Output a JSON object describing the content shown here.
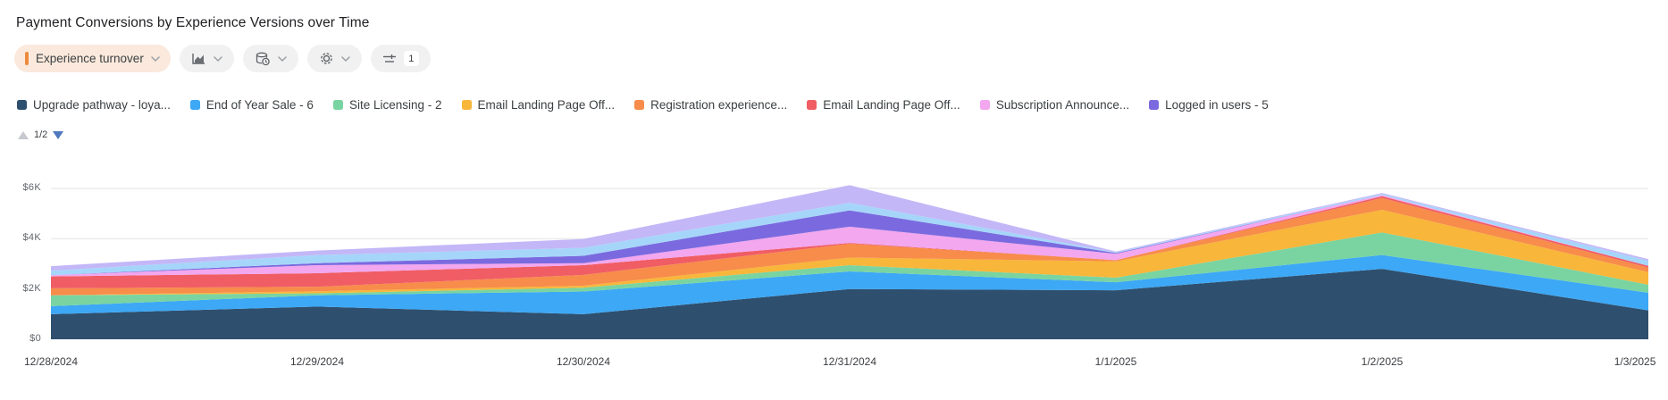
{
  "header": {
    "title": "Payment Conversions by Experience Versions over Time"
  },
  "toolbar": {
    "metric_pill": {
      "label": "Experience turnover",
      "accent_color": "#ed8a3c",
      "bg_color": "#fae9dc"
    },
    "filter_badge": "1"
  },
  "legend": {
    "page_indicator": "1/2",
    "items": [
      {
        "label": "Upgrade pathway - loya...",
        "color": "#2e4f6e"
      },
      {
        "label": "End of Year Sale - 6",
        "color": "#3da8f5"
      },
      {
        "label": "Site Licensing - 2",
        "color": "#79d4a1"
      },
      {
        "label": "Email Landing Page Off...",
        "color": "#f8b63a"
      },
      {
        "label": "Registration experience...",
        "color": "#f78c4b"
      },
      {
        "label": "Email Landing Page Off...",
        "color": "#f05d64"
      },
      {
        "label": "Subscription Announce...",
        "color": "#f2a7ee"
      },
      {
        "label": "Logged in users - 5",
        "color": "#7b6adf"
      }
    ]
  },
  "chart_data": {
    "type": "area",
    "stacked": true,
    "title": "Payment Conversions by Experience Versions over Time",
    "xlabel": "",
    "ylabel": "",
    "grid": true,
    "legend_position": "top",
    "x": [
      "12/28/2024",
      "12/29/2024",
      "12/30/2024",
      "12/31/2024",
      "1/1/2025",
      "1/2/2025",
      "1/3/2025"
    ],
    "y_ticks": [
      "$0",
      "$2K",
      "$4K",
      "$6K"
    ],
    "y_tick_values": [
      0,
      2000,
      4000,
      6000
    ],
    "ylim": [
      0,
      7530
    ],
    "series": [
      {
        "name": "Upgrade pathway - loya...",
        "color": "#2e4f6e",
        "values": [
          1000,
          1300,
          1000,
          2000,
          1950,
          2800,
          1150
        ]
      },
      {
        "name": "End of Year Sale - 6",
        "color": "#3da8f5",
        "values": [
          320,
          450,
          900,
          700,
          320,
          550,
          700
        ]
      },
      {
        "name": "Site Licensing - 2",
        "color": "#79d4a1",
        "values": [
          430,
          80,
          150,
          250,
          180,
          900,
          320
        ]
      },
      {
        "name": "Email Landing Page Off...",
        "color": "#f8b63a",
        "values": [
          0,
          80,
          80,
          300,
          650,
          900,
          500
        ]
      },
      {
        "name": "Registration experience...",
        "color": "#f78c4b",
        "values": [
          280,
          180,
          430,
          550,
          50,
          470,
          180
        ]
      },
      {
        "name": "Email Landing Page Off...",
        "color": "#f05d64",
        "values": [
          470,
          540,
          390,
          30,
          0,
          70,
          70
        ]
      },
      {
        "name": "Subscription Announce...",
        "color": "#f2a7ee",
        "values": [
          50,
          320,
          80,
          650,
          250,
          50,
          0
        ]
      },
      {
        "name": "Logged in users - 5",
        "color": "#7b6adf",
        "values": [
          0,
          80,
          290,
          650,
          30,
          0,
          0
        ]
      },
      {
        "name": "",
        "color": "#a6d5fa",
        "values": [
          180,
          320,
          320,
          300,
          30,
          50,
          200
        ]
      },
      {
        "name": "",
        "color": "#c3b7f7",
        "values": [
          180,
          180,
          350,
          700,
          30,
          30,
          70
        ]
      }
    ]
  }
}
